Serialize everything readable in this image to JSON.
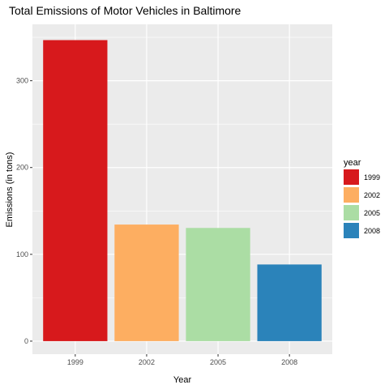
{
  "chart_data": {
    "type": "bar",
    "title": "Total Emissions of Motor Vehicles in Baltimore",
    "xlabel": "Year",
    "ylabel": "Emissions (in tons)",
    "categories": [
      "1999",
      "2002",
      "2005",
      "2008"
    ],
    "values": [
      346.8,
      134.3,
      130.4,
      88.3
    ],
    "colors": [
      "#d7191c",
      "#fdae61",
      "#abdda4",
      "#2b83ba"
    ],
    "ylim": [
      -15,
      365
    ],
    "y_ticks": [
      0,
      100,
      200,
      300
    ],
    "y_tick_labels": [
      "0",
      "100",
      "200",
      "300"
    ],
    "grid": true,
    "panel_background": "#ebebeb",
    "legend": {
      "title": "year",
      "placement": "right",
      "entries": [
        "1999",
        "2002",
        "2005",
        "2008"
      ]
    }
  }
}
